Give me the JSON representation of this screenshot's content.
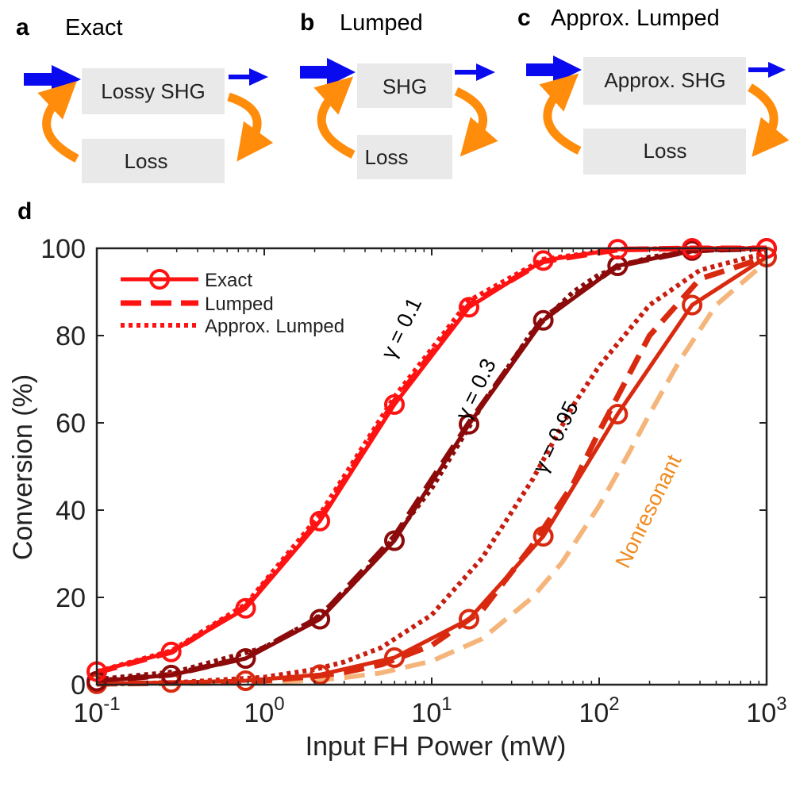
{
  "panels": [
    {
      "label": "a",
      "title": "Exact",
      "shg_box": "Lossy SHG",
      "loss_box": "Loss"
    },
    {
      "label": "b",
      "title": "Lumped",
      "shg_box": "SHG",
      "loss_box": "Loss"
    },
    {
      "label": "c",
      "title": "Approx. Lumped",
      "shg_box": "Approx. SHG",
      "loss_box": "Loss"
    }
  ],
  "plot_label": "d",
  "colors": {
    "fh_arrow": "#0a0aee",
    "loop_arrow": "#ff8c0a",
    "box_fill": "#e9e9e9",
    "gamma_0_1": "#ff1212",
    "gamma_0_3": "#8c0a0a",
    "gamma_0_95": "#d92a10",
    "nonresonant": "#f5b57a",
    "nonresonant_label": "#f08a1e",
    "approx_0_95": "#c81e10"
  },
  "chart_data": {
    "type": "line",
    "xscale": "log",
    "xlim": [
      0.1,
      1000
    ],
    "ylim": [
      0,
      100
    ],
    "xlabel": "Input FH Power (mW)",
    "ylabel": "Conversion (%)",
    "xticks": [
      {
        "value": 0.1,
        "base": "10",
        "exp": "-1"
      },
      {
        "value": 1,
        "base": "10",
        "exp": "0"
      },
      {
        "value": 10,
        "base": "10",
        "exp": "1"
      },
      {
        "value": 100,
        "base": "10",
        "exp": "2"
      },
      {
        "value": 1000,
        "base": "10",
        "exp": "3"
      }
    ],
    "yticks": [
      "0",
      "20",
      "40",
      "60",
      "80",
      "100"
    ],
    "legend": {
      "position": "top-left",
      "entries": [
        {
          "label": "Exact",
          "style": "solid-marker"
        },
        {
          "label": "Lumped",
          "style": "dashed"
        },
        {
          "label": "Approx. Lumped",
          "style": "dotted"
        }
      ]
    },
    "annotations": [
      {
        "text": "γ = 0.1",
        "x": 7.2,
        "y": 81,
        "angle": -64,
        "color": "#000000"
      },
      {
        "text": "γ = 0.3",
        "x": 20,
        "y": 67,
        "angle": -64,
        "color": "#000000"
      },
      {
        "text": "γ = 0.95",
        "x": 60,
        "y": 56,
        "angle": -64,
        "color": "#000000"
      },
      {
        "text": "Nonresonant",
        "x": 215,
        "y": 39,
        "angle": -64,
        "color": "#f08a1e"
      }
    ],
    "series": [
      {
        "name": "Nonresonant",
        "style": "dashed",
        "color": "#f5b57a",
        "width": 6,
        "x": [
          0.1,
          0.5,
          1,
          2,
          3,
          5,
          10,
          20,
          40,
          60,
          100,
          150,
          200,
          300,
          500,
          1000
        ],
        "y": [
          0.1,
          0.3,
          0.5,
          1,
          1.6,
          2.7,
          5.4,
          10.5,
          20,
          28,
          41,
          53,
          62,
          74,
          87,
          97
        ]
      },
      {
        "name": "Approx. Lumped γ=0.95",
        "style": "dotted",
        "color": "#c81e10",
        "width": 6,
        "x": [
          0.1,
          0.3,
          1,
          2,
          3,
          5,
          10,
          20,
          40,
          70,
          100,
          200,
          400,
          1000
        ],
        "y": [
          0.1,
          0.5,
          1.7,
          3.5,
          5.2,
          8.5,
          16,
          29,
          47,
          64,
          73,
          87,
          95,
          99
        ]
      },
      {
        "name": "Lumped γ=0.95",
        "style": "dashed",
        "color": "#d92a10",
        "width": 7,
        "x": [
          0.1,
          0.5,
          1,
          2,
          3,
          5,
          10,
          20,
          40,
          70,
          100,
          200,
          400,
          1000
        ],
        "y": [
          0.2,
          0.5,
          0.9,
          1.9,
          2.8,
          4.6,
          9,
          17,
          32,
          46,
          58,
          80,
          93,
          98
        ]
      },
      {
        "name": "Approx. Lumped γ=0.3",
        "style": "dotted",
        "color": "#8c0a0a",
        "width": 6,
        "x": [
          0.1,
          0.3,
          1,
          2,
          3,
          5,
          10,
          20,
          40,
          70,
          100,
          200,
          400,
          1000
        ],
        "y": [
          1.2,
          3,
          8.5,
          15,
          21,
          30,
          45,
          64,
          81,
          90,
          94,
          98,
          99.5,
          100
        ]
      },
      {
        "name": "Lumped γ=0.3",
        "style": "dashed",
        "color": "#8c0a0a",
        "width": 7,
        "x": [
          0.1,
          0.28,
          0.78,
          2.15,
          6,
          16.7,
          46.4,
          129,
          359,
          1000
        ],
        "y": [
          0.8,
          2.3,
          6.2,
          15.5,
          34,
          60,
          84,
          96,
          99.5,
          100
        ]
      },
      {
        "name": "Lumped γ=0.1",
        "style": "dashed",
        "color": "#ff1212",
        "width": 7,
        "x": [
          0.1,
          0.28,
          0.78,
          2.15,
          6,
          16.7,
          46.4,
          129,
          359,
          1000
        ],
        "y": [
          2.8,
          7.5,
          18,
          38,
          65,
          87,
          97,
          99.7,
          100,
          100
        ]
      },
      {
        "name": "Approx. Lumped γ=0.1",
        "style": "dotted",
        "color": "#ff1212",
        "width": 6,
        "x": [
          0.1,
          0.28,
          0.78,
          2.15,
          6,
          16.7,
          46.4,
          129,
          359,
          1000
        ],
        "y": [
          3,
          7.8,
          18.5,
          39,
          66,
          88,
          97.5,
          99.8,
          100,
          100
        ]
      },
      {
        "name": "Exact γ=0.95",
        "style": "solid-marker",
        "color": "#d92a10",
        "width": 5,
        "x": [
          0.1,
          0.278,
          0.774,
          2.15,
          5.99,
          16.7,
          46.4,
          129,
          359,
          1000
        ],
        "y": [
          0.2,
          0.5,
          0.9,
          2.3,
          6.2,
          15,
          34,
          62,
          87,
          98
        ]
      },
      {
        "name": "Exact γ=0.3",
        "style": "solid-marker",
        "color": "#8c0a0a",
        "width": 5,
        "x": [
          0.1,
          0.278,
          0.774,
          2.15,
          5.99,
          16.7,
          46.4,
          129,
          359,
          1000
        ],
        "y": [
          0.8,
          2.2,
          6,
          15,
          33,
          59.7,
          83.5,
          96,
          99.5,
          100
        ]
      },
      {
        "name": "Exact γ=0.1",
        "style": "solid-marker",
        "color": "#ff1212",
        "width": 5,
        "x": [
          0.1,
          0.278,
          0.774,
          2.15,
          5.99,
          16.7,
          46.4,
          129,
          359,
          1000
        ],
        "y": [
          3,
          7.5,
          17.5,
          37.5,
          64.2,
          86.5,
          97.2,
          99.8,
          100,
          100
        ]
      }
    ]
  }
}
